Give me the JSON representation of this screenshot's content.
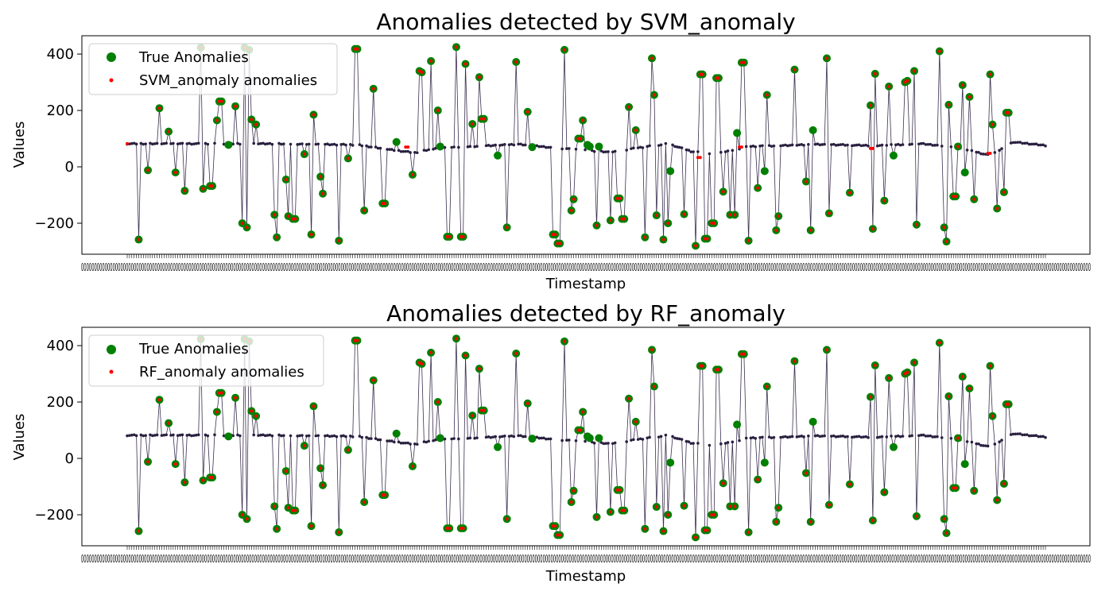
{
  "figure": {
    "background": "#ffffff"
  },
  "colors": {
    "line": "#3b2f4f",
    "point": "#2a2040",
    "true_anomaly": "#008000",
    "detected": "#ff0000"
  },
  "tick_label_text": "0000000000000000000000000000000000000000000000000000000000000000000000000000000000000000000000000000000000000000000000000000000000000000000000000000000000000000000000000000000000000000000000000000000000000000000000000000000000000000000000000000000000000000000000000000000000000000000000000000000000000000000000000000000000000000000000000000000000000000000000000000000000000000000000000",
  "chart_data": [
    {
      "type": "scatter",
      "title": "Anomalies detected by SVM_anomaly",
      "xlabel": "Timestamp",
      "ylabel": "Values",
      "ylim": [
        -310,
        465
      ],
      "yticks": [
        -200,
        0,
        200,
        400
      ],
      "ytick_labels": [
        "−200",
        "0",
        "200",
        "400"
      ],
      "x_count": 400,
      "legend": {
        "placement": "top-left",
        "entries": [
          "True Anomalies",
          "SVM_anomaly anomalies"
        ]
      },
      "series": [
        {
          "name": "True Anomalies",
          "kind": "true_anomalies"
        },
        {
          "name": "SVM_anomaly anomalies",
          "kind": "detected",
          "extra_points": [
            [
              0,
              82
            ],
            [
              121,
              70
            ],
            [
              122,
              70
            ],
            [
              248,
              33
            ],
            [
              249,
              33
            ],
            [
              266,
              70
            ],
            [
              267,
              70
            ],
            [
              323,
              65
            ],
            [
              324,
              65
            ],
            [
              374,
              48
            ],
            [
              375,
              48
            ]
          ]
        }
      ]
    },
    {
      "type": "scatter",
      "title": "Anomalies detected by RF_anomaly",
      "xlabel": "Timestamp",
      "ylabel": "Values",
      "ylim": [
        -310,
        465
      ],
      "yticks": [
        -200,
        0,
        200,
        400
      ],
      "ytick_labels": [
        "−200",
        "0",
        "200",
        "400"
      ],
      "x_count": 400,
      "legend": {
        "placement": "top-left",
        "entries": [
          "True Anomalies",
          "RF_anomaly anomalies"
        ]
      },
      "series": [
        {
          "name": "True Anomalies",
          "kind": "true_anomalies"
        },
        {
          "name": "RF_anomaly anomalies",
          "kind": "detected",
          "extra_points": []
        }
      ]
    }
  ],
  "time_series": {
    "baseline": [
      [
        0,
        82
      ],
      [
        60,
        82
      ],
      [
        100,
        78
      ],
      [
        115,
        60
      ],
      [
        125,
        50
      ],
      [
        135,
        68
      ],
      [
        150,
        72
      ],
      [
        170,
        80
      ],
      [
        185,
        68
      ],
      [
        200,
        58
      ],
      [
        210,
        52
      ],
      [
        220,
        65
      ],
      [
        235,
        82
      ],
      [
        245,
        55
      ],
      [
        255,
        45
      ],
      [
        270,
        72
      ],
      [
        300,
        80
      ],
      [
        325,
        75
      ],
      [
        345,
        82
      ],
      [
        360,
        70
      ],
      [
        375,
        40
      ],
      [
        385,
        88
      ],
      [
        400,
        75
      ]
    ],
    "anomalies": [
      [
        5,
        -258
      ],
      [
        9,
        -12
      ],
      [
        14,
        208
      ],
      [
        18,
        125
      ],
      [
        21,
        -20
      ],
      [
        25,
        -85
      ],
      [
        32,
        423
      ],
      [
        33,
        -78
      ],
      [
        36,
        -68
      ],
      [
        37,
        -68
      ],
      [
        39,
        165
      ],
      [
        40,
        232
      ],
      [
        41,
        232
      ],
      [
        44,
        78
      ],
      [
        47,
        215
      ],
      [
        50,
        -200
      ],
      [
        51,
        423
      ],
      [
        52,
        -215
      ],
      [
        53,
        415
      ],
      [
        54,
        168
      ],
      [
        56,
        150
      ],
      [
        64,
        -170
      ],
      [
        65,
        -250
      ],
      [
        69,
        -45
      ],
      [
        70,
        -175
      ],
      [
        72,
        -185
      ],
      [
        73,
        -185
      ],
      [
        77,
        45
      ],
      [
        80,
        -240
      ],
      [
        81,
        185
      ],
      [
        84,
        -35
      ],
      [
        85,
        -95
      ],
      [
        92,
        -262
      ],
      [
        96,
        30
      ],
      [
        99,
        418
      ],
      [
        100,
        418
      ],
      [
        103,
        -155
      ],
      [
        107,
        277
      ],
      [
        111,
        -130
      ],
      [
        112,
        -130
      ],
      [
        117,
        88
      ],
      [
        124,
        -28
      ],
      [
        127,
        340
      ],
      [
        128,
        335
      ],
      [
        132,
        375
      ],
      [
        135,
        200
      ],
      [
        136,
        72
      ],
      [
        139,
        -248
      ],
      [
        140,
        -248
      ],
      [
        143,
        425
      ],
      [
        145,
        -248
      ],
      [
        146,
        -248
      ],
      [
        147,
        365
      ],
      [
        150,
        152
      ],
      [
        153,
        318
      ],
      [
        154,
        170
      ],
      [
        155,
        170
      ],
      [
        161,
        40
      ],
      [
        165,
        -215
      ],
      [
        169,
        372
      ],
      [
        174,
        195
      ],
      [
        176,
        70
      ],
      [
        185,
        -240
      ],
      [
        186,
        -240
      ],
      [
        187,
        -272
      ],
      [
        188,
        -272
      ],
      [
        190,
        415
      ],
      [
        193,
        -155
      ],
      [
        194,
        -115
      ],
      [
        196,
        100
      ],
      [
        197,
        100
      ],
      [
        198,
        165
      ],
      [
        200,
        78
      ],
      [
        201,
        72
      ],
      [
        204,
        -208
      ],
      [
        205,
        72
      ],
      [
        210,
        -190
      ],
      [
        213,
        -112
      ],
      [
        214,
        -112
      ],
      [
        215,
        -185
      ],
      [
        216,
        -185
      ],
      [
        218,
        212
      ],
      [
        221,
        130
      ],
      [
        225,
        -250
      ],
      [
        228,
        385
      ],
      [
        229,
        255
      ],
      [
        230,
        -172
      ],
      [
        233,
        -258
      ],
      [
        235,
        -200
      ],
      [
        236,
        -15
      ],
      [
        242,
        -168
      ],
      [
        247,
        -280
      ],
      [
        249,
        328
      ],
      [
        250,
        328
      ],
      [
        251,
        -255
      ],
      [
        252,
        -255
      ],
      [
        254,
        -200
      ],
      [
        255,
        -200
      ],
      [
        256,
        315
      ],
      [
        257,
        315
      ],
      [
        259,
        -88
      ],
      [
        262,
        -170
      ],
      [
        264,
        -170
      ],
      [
        265,
        120
      ],
      [
        267,
        370
      ],
      [
        268,
        370
      ],
      [
        270,
        -262
      ],
      [
        274,
        -75
      ],
      [
        277,
        -15
      ],
      [
        278,
        255
      ],
      [
        282,
        -225
      ],
      [
        283,
        -175
      ],
      [
        290,
        345
      ],
      [
        295,
        -52
      ],
      [
        297,
        -225
      ],
      [
        298,
        130
      ],
      [
        304,
        385
      ],
      [
        305,
        -165
      ],
      [
        314,
        -92
      ],
      [
        323,
        218
      ],
      [
        324,
        -220
      ],
      [
        325,
        330
      ],
      [
        329,
        -120
      ],
      [
        331,
        285
      ],
      [
        333,
        40
      ],
      [
        338,
        300
      ],
      [
        339,
        305
      ],
      [
        342,
        340
      ],
      [
        343,
        -205
      ],
      [
        353,
        410
      ],
      [
        355,
        -215
      ],
      [
        356,
        -265
      ],
      [
        357,
        220
      ],
      [
        359,
        -105
      ],
      [
        360,
        -105
      ],
      [
        361,
        72
      ],
      [
        363,
        290
      ],
      [
        364,
        -20
      ],
      [
        366,
        248
      ],
      [
        368,
        -115
      ],
      [
        375,
        328
      ],
      [
        376,
        150
      ],
      [
        378,
        -148
      ],
      [
        381,
        -90
      ],
      [
        382,
        192
      ],
      [
        383,
        192
      ]
    ]
  }
}
